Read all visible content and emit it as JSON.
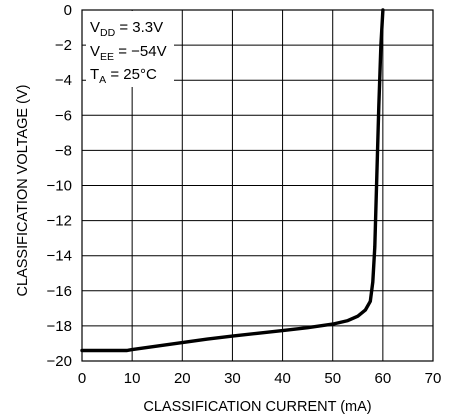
{
  "chart_data": {
    "type": "line",
    "xlabel": "CLASSIFICATION CURRENT (mA)",
    "ylabel": "CLASSIFICATION VOLTAGE (V)",
    "xlim": [
      0,
      70
    ],
    "ylim": [
      -20,
      0
    ],
    "x_ticks": [
      0,
      10,
      20,
      30,
      40,
      50,
      60,
      70
    ],
    "y_ticks": [
      0,
      -2,
      -4,
      -6,
      -8,
      -10,
      -12,
      -14,
      -16,
      -18,
      -20
    ],
    "y_tick_labels": [
      "0",
      "−2",
      "−4",
      "−6",
      "−8",
      "−10",
      "−12",
      "−14",
      "−16",
      "−18",
      "−20"
    ],
    "grid": true,
    "conditions": [
      {
        "main": "V",
        "sub": "DD",
        "rest": " = 3.3V"
      },
      {
        "main": "V",
        "sub": "EE",
        "rest": " = −54V"
      },
      {
        "main": "T",
        "sub": "A",
        "rest": " = 25°C"
      }
    ],
    "series": [
      {
        "x": [
          0,
          5,
          9,
          10,
          15,
          20,
          25,
          30,
          35,
          40,
          45,
          50,
          53,
          55,
          56.5,
          57.5,
          58,
          58.4,
          58.8,
          59.2,
          59.6,
          60
        ],
        "y": [
          -19.4,
          -19.4,
          -19.4,
          -19.35,
          -19.15,
          -18.95,
          -18.75,
          -18.58,
          -18.42,
          -18.27,
          -18.1,
          -17.9,
          -17.7,
          -17.45,
          -17.1,
          -16.6,
          -15.5,
          -13.5,
          -9.5,
          -5.5,
          -2.0,
          0
        ]
      }
    ]
  }
}
